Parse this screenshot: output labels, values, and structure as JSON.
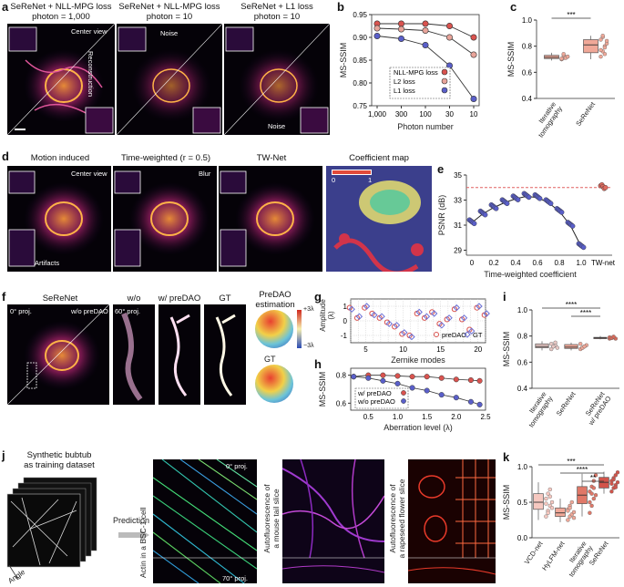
{
  "panels": {
    "a": {
      "label": "a",
      "titles": [
        "SeReNet + NLL-MPG loss\nphoton = 1,000",
        "SeReNet + NLL-MPG loss\nphoton = 10",
        "SeReNet + L1 loss\nphoton = 10"
      ],
      "annotations": {
        "center_view": "Center view",
        "reconstruction": "Reconstruction",
        "noise1": "Noise",
        "noise2": "Noise"
      }
    },
    "b": {
      "label": "b",
      "legend": [
        "NLL-MPG loss",
        "L2 loss",
        "L1 loss"
      ]
    },
    "c": {
      "label": "c",
      "sig": "***"
    },
    "d": {
      "label": "d",
      "titles": [
        "Motion induced",
        "Time-weighted (r = 0.5)",
        "TW-Net",
        "Coefficient map"
      ],
      "annotations": {
        "center_view": "Center view",
        "blur": "Blur",
        "artifacts": "Artifacts",
        "cmap_min": "0",
        "cmap_max": "1"
      }
    },
    "e": {
      "label": "e"
    },
    "f": {
      "label": "f",
      "titles": [
        "SeReNet",
        "w/o preDAO",
        "w/ preDAO",
        "GT",
        "PreDAO\nestimation"
      ],
      "annotations": {
        "proj0": "0° proj.",
        "proj60": "60° proj.",
        "wo": "w/o preDAO",
        "w": "w/ preDAO",
        "gt": "GT",
        "cb_max": "+3λ",
        "cb_min": "−3λ"
      }
    },
    "g": {
      "label": "g",
      "legend": [
        "preDAO",
        "GT"
      ]
    },
    "h": {
      "label": "h",
      "legend": [
        "w/ preDAO",
        "w/o preDAO"
      ]
    },
    "i": {
      "label": "i",
      "sig": [
        "****",
        "****"
      ]
    },
    "j": {
      "label": "j",
      "left_title": "Synthetic bubtub\nas training dataset",
      "arrow_label": "Prediction",
      "angle": "Angle",
      "vlabels": [
        "Actin in a BSC-1 cell",
        "Autofluorescence of\na mouse tail slice",
        "Autofluorescence of\na rapeseed flower slice"
      ],
      "proj0": "0° proj.",
      "proj70": "70° proj."
    },
    "k": {
      "label": "k",
      "sig": [
        "***",
        "****",
        "**"
      ]
    }
  },
  "chart_data": [
    {
      "id": "b",
      "type": "line",
      "xlabel": "Photon number",
      "ylabel": "MS-SSIM",
      "x": [
        "1,000",
        "300",
        "100",
        "30",
        "10"
      ],
      "ylim": [
        0.75,
        0.95
      ],
      "yticks": [
        0.75,
        0.8,
        0.85,
        0.9,
        0.95
      ],
      "series": [
        {
          "name": "NLL-MPG loss",
          "color": "#d9534f",
          "values": [
            0.93,
            0.93,
            0.93,
            0.925,
            0.9
          ]
        },
        {
          "name": "L2 loss",
          "color": "#e8a49a",
          "values": [
            0.92,
            0.918,
            0.915,
            0.9,
            0.862
          ]
        },
        {
          "name": "L1 loss",
          "color": "#5a5fc9",
          "values": [
            0.903,
            0.897,
            0.883,
            0.838,
            0.765
          ]
        }
      ]
    },
    {
      "id": "c",
      "type": "box",
      "ylabel": "MS-SSIM",
      "ylim": [
        0.4,
        1.0
      ],
      "yticks": [
        0.4,
        0.6,
        0.8,
        1.0
      ],
      "categories": [
        "Iterative\ntomography",
        "SeReNet"
      ],
      "boxes": [
        {
          "q1": 0.705,
          "median": 0.715,
          "q3": 0.73,
          "min": 0.69,
          "max": 0.75,
          "points": [
            0.7,
            0.71,
            0.715,
            0.72,
            0.7,
            0.73,
            0.71,
            0.72,
            0.705,
            0.74
          ]
        },
        {
          "q1": 0.75,
          "median": 0.81,
          "q3": 0.85,
          "min": 0.7,
          "max": 0.88,
          "points": [
            0.72,
            0.76,
            0.8,
            0.82,
            0.85,
            0.87,
            0.79,
            0.84,
            0.77,
            0.88,
            0.74
          ]
        }
      ]
    },
    {
      "id": "e",
      "type": "scatter",
      "xlabel": "Time-weighted coefficient",
      "ylabel": "PSNR (dB)",
      "xticks": [
        "0",
        "0.2",
        "0.4",
        "0.6",
        "0.8",
        "1.0",
        "TW-net"
      ],
      "ylim": [
        28.6,
        35.0
      ],
      "yticks": [
        29,
        31,
        33,
        35
      ],
      "reference_line": 34.0,
      "x": [
        0.0,
        0.1,
        0.2,
        0.3,
        0.4,
        0.5,
        0.6,
        0.7,
        0.8,
        0.9,
        1.0
      ],
      "values": [
        31.2,
        31.9,
        32.4,
        32.8,
        33.1,
        33.3,
        33.2,
        32.8,
        32.1,
        31.0,
        29.3
      ],
      "twnet": 34.0
    },
    {
      "id": "g",
      "type": "scatter",
      "xlabel": "Zernike modes",
      "ylabel": "Amplitude\n(λ)",
      "xlim": [
        3,
        21
      ],
      "xticks": [
        5,
        10,
        15,
        20
      ],
      "ylim": [
        -1.5,
        1.5
      ],
      "yticks": [
        -1,
        0,
        1
      ],
      "x": [
        3,
        4,
        5,
        6,
        7,
        8,
        9,
        10,
        11,
        12,
        13,
        14,
        15,
        16,
        17,
        18,
        19,
        20,
        21
      ],
      "series": [
        {
          "name": "preDAO",
          "color": "#d9534f",
          "values": [
            0.9,
            0.2,
            0.9,
            0.5,
            0.2,
            -0.1,
            -0.4,
            -0.9,
            -1.0,
            0.5,
            0.2,
            0.6,
            -0.2,
            0.1,
            0.8,
            0.1,
            -0.6,
            0.9,
            0.4
          ]
        },
        {
          "name": "GT",
          "color": "#6a6fd6",
          "values": [
            0.8,
            0.3,
            1.0,
            0.4,
            0.3,
            -0.2,
            -0.3,
            -0.8,
            -1.1,
            0.6,
            0.3,
            0.5,
            -0.3,
            0.2,
            0.9,
            0.2,
            -0.7,
            1.0,
            0.5
          ]
        }
      ]
    },
    {
      "id": "h",
      "type": "line",
      "xlabel": "Aberration level (λ)",
      "ylabel": "MS-SSIM",
      "xlim": [
        0.2,
        2.5
      ],
      "xticks": [
        0.5,
        1.0,
        1.5,
        2.0,
        2.5
      ],
      "ylim": [
        0.55,
        0.85
      ],
      "yticks": [
        0.6,
        0.8
      ],
      "x": [
        0.25,
        0.5,
        0.75,
        1.0,
        1.25,
        1.5,
        1.75,
        2.0,
        2.25,
        2.4
      ],
      "series": [
        {
          "name": "w/ preDAO",
          "color": "#d9534f",
          "values": [
            0.79,
            0.8,
            0.8,
            0.795,
            0.79,
            0.79,
            0.78,
            0.77,
            0.765,
            0.76
          ]
        },
        {
          "name": "w/o preDAO",
          "color": "#5a5fc9",
          "values": [
            0.79,
            0.78,
            0.76,
            0.74,
            0.71,
            0.69,
            0.66,
            0.64,
            0.61,
            0.59
          ]
        }
      ]
    },
    {
      "id": "i",
      "type": "box",
      "ylabel": "MS-SSIM",
      "ylim": [
        0.4,
        1.0
      ],
      "yticks": [
        0.4,
        0.6,
        0.8,
        1.0
      ],
      "categories": [
        "Iterative\ntomography",
        "SeReNet",
        "SeReNet\nw/ preDAO"
      ],
      "boxes": [
        {
          "q1": 0.71,
          "median": 0.72,
          "q3": 0.74,
          "min": 0.69,
          "max": 0.76,
          "points": [
            0.7,
            0.72,
            0.73,
            0.71,
            0.74,
            0.72,
            0.75
          ]
        },
        {
          "q1": 0.705,
          "median": 0.715,
          "q3": 0.735,
          "min": 0.69,
          "max": 0.75,
          "points": [
            0.7,
            0.71,
            0.72,
            0.73,
            0.74,
            0.71,
            0.72
          ]
        },
        {
          "q1": 0.78,
          "median": 0.785,
          "q3": 0.79,
          "min": 0.775,
          "max": 0.8,
          "points": [
            0.78,
            0.785,
            0.79,
            0.78,
            0.79,
            0.785,
            0.795
          ]
        }
      ]
    },
    {
      "id": "k",
      "type": "box",
      "ylabel": "MS-SSIM",
      "ylim": [
        0.0,
        1.0
      ],
      "yticks": [
        0.0,
        0.5,
        1.0
      ],
      "categories": [
        "VCD-net",
        "HyLFM-net",
        "Iterative\ntomography",
        "SeReNet"
      ],
      "boxes": [
        {
          "q1": 0.4,
          "median": 0.5,
          "q3": 0.62,
          "min": 0.25,
          "max": 0.78,
          "points": [
            0.3,
            0.38,
            0.45,
            0.5,
            0.55,
            0.62,
            0.68,
            0.42,
            0.48,
            0.35,
            0.58
          ]
        },
        {
          "q1": 0.3,
          "median": 0.35,
          "q3": 0.42,
          "min": 0.22,
          "max": 0.55,
          "points": [
            0.25,
            0.3,
            0.33,
            0.36,
            0.4,
            0.45,
            0.5,
            0.28,
            0.38,
            0.42
          ]
        },
        {
          "q1": 0.48,
          "median": 0.6,
          "q3": 0.72,
          "min": 0.3,
          "max": 0.9,
          "points": [
            0.35,
            0.45,
            0.55,
            0.6,
            0.65,
            0.72,
            0.8,
            0.88,
            0.5,
            0.62,
            0.7
          ]
        },
        {
          "q1": 0.7,
          "median": 0.78,
          "q3": 0.85,
          "min": 0.62,
          "max": 0.93,
          "points": [
            0.65,
            0.7,
            0.74,
            0.78,
            0.8,
            0.84,
            0.88,
            0.92,
            0.76,
            0.82,
            0.71
          ]
        }
      ]
    }
  ]
}
